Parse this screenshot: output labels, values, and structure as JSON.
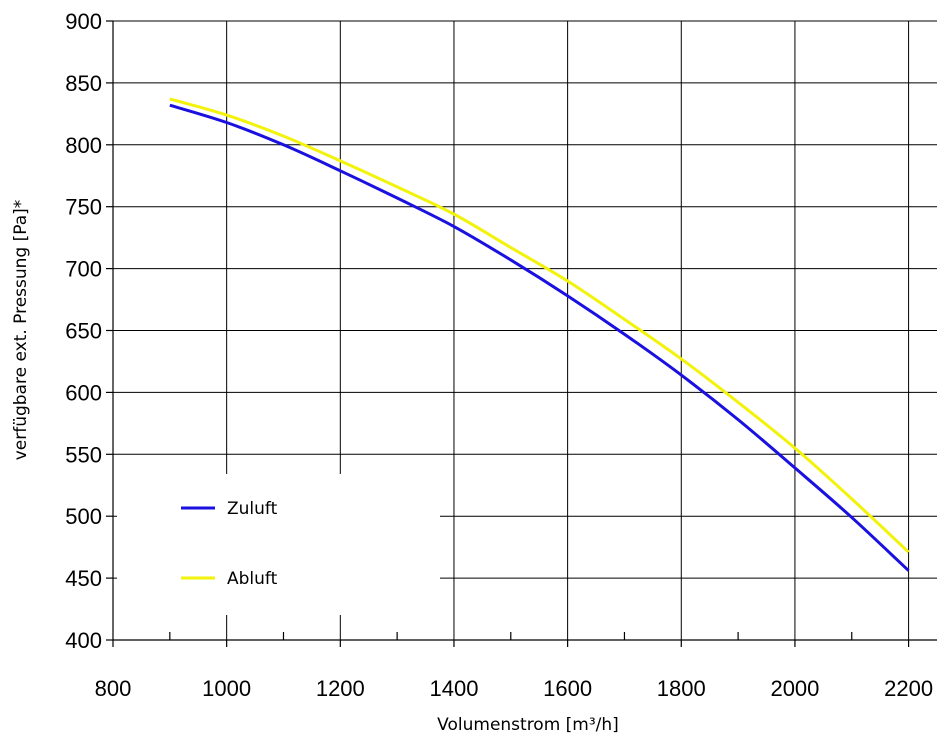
{
  "chart_data": {
    "type": "line",
    "title": "",
    "xlabel": "Volumenstrom [m³/h]",
    "ylabel": "verfügbare ext. Pressung [Pa]*",
    "xlim": [
      800,
      2250
    ],
    "ylim": [
      400,
      900
    ],
    "xticks": [
      800,
      1000,
      1200,
      1400,
      1600,
      1800,
      2000,
      2200
    ],
    "yticks": [
      400,
      450,
      500,
      550,
      600,
      650,
      700,
      750,
      800,
      850,
      900
    ],
    "grid": true,
    "legend_position": "lower-left",
    "series": [
      {
        "name": "Zuluft",
        "color": "#1a10e0",
        "x": [
          900,
          1000,
          1100,
          1200,
          1300,
          1400,
          1500,
          1600,
          1700,
          1800,
          1900,
          2000,
          2100,
          2200
        ],
        "y": [
          832,
          818,
          800,
          779,
          757,
          734,
          707,
          678,
          647,
          614,
          578,
          539,
          499,
          456
        ]
      },
      {
        "name": "Abluft",
        "color": "#f2f20a",
        "x": [
          900,
          1000,
          1100,
          1200,
          1300,
          1400,
          1500,
          1600,
          1700,
          1800,
          1900,
          2000,
          2100,
          2200
        ],
        "y": [
          837,
          824,
          807,
          787,
          766,
          744,
          717,
          690,
          659,
          627,
          592,
          555,
          514,
          471
        ]
      }
    ]
  }
}
